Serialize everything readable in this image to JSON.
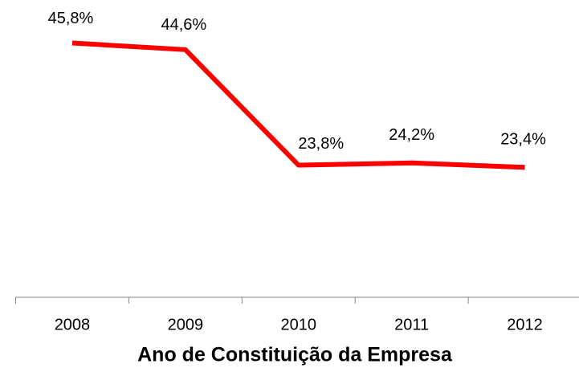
{
  "chart_data": {
    "type": "line",
    "x_label": "Ano de Constituição da Empresa",
    "categories": [
      "2008",
      "2009",
      "2010",
      "2011",
      "2012"
    ],
    "series": [
      {
        "color": "#ff0000",
        "values": [
          45.8,
          44.6,
          23.8,
          24.2,
          23.4
        ],
        "value_labels": [
          "45,8%",
          "44,6%",
          "23,8%",
          "24,2%",
          "23,4%"
        ]
      }
    ],
    "ylim": [
      0,
      50
    ]
  }
}
